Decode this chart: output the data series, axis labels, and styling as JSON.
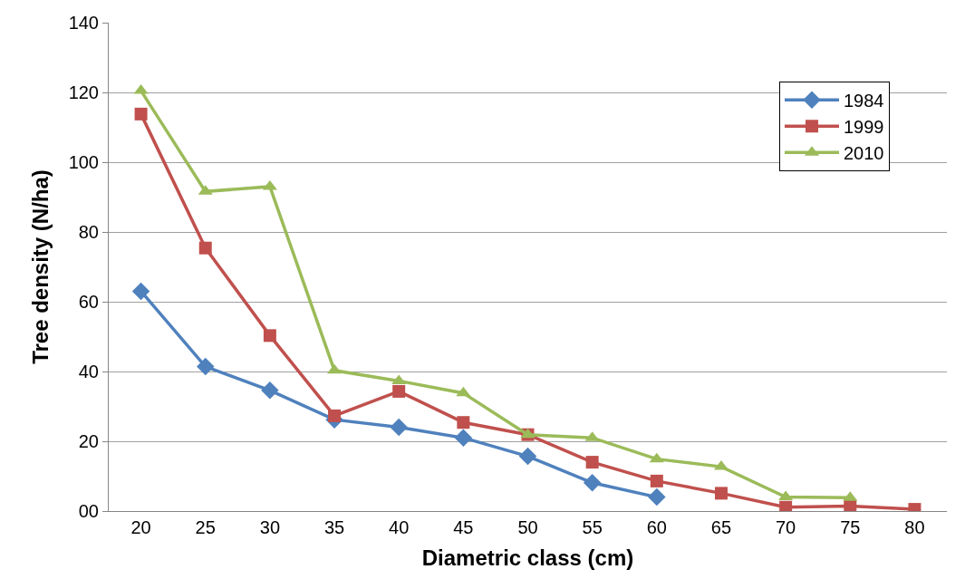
{
  "chart_data": {
    "type": "line",
    "xlabel": "Diametric class (cm)",
    "ylabel": "Tree density (N/ha)",
    "categories": [
      "20",
      "25",
      "30",
      "35",
      "40",
      "45",
      "50",
      "55",
      "60",
      "65",
      "70",
      "75",
      "80"
    ],
    "ylim": [
      0,
      140
    ],
    "yticks": [
      {
        "value": 0,
        "label": "00"
      },
      20,
      40,
      60,
      80,
      100,
      120,
      140
    ],
    "grid": "y",
    "legend": "top right",
    "series": [
      {
        "name": "1984",
        "color": "#4f81bd",
        "marker": "diamond",
        "values": [
          63,
          41.4,
          34.6,
          26.2,
          24,
          21,
          15.7,
          8.1,
          4,
          null,
          null,
          null,
          null
        ]
      },
      {
        "name": "1999",
        "color": "#c0504d",
        "marker": "square",
        "values": [
          113.8,
          75.4,
          50.3,
          27.3,
          34.3,
          25.4,
          21.9,
          14,
          8.6,
          5.1,
          1.1,
          1.4,
          0.5
        ]
      },
      {
        "name": "2010",
        "color": "#9bbb59",
        "marker": "triangle",
        "values": [
          120.5,
          91.6,
          93,
          40.3,
          37.3,
          33.8,
          21.9,
          21,
          14.9,
          12.7,
          4,
          3.8,
          null
        ]
      }
    ]
  }
}
